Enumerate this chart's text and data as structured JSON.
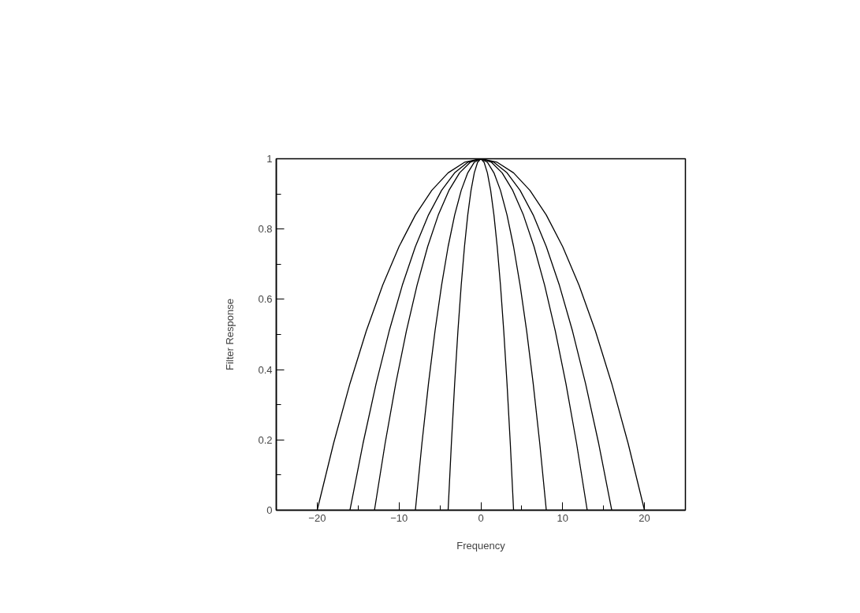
{
  "chart_data": {
    "type": "line",
    "xlabel": "Frequency",
    "ylabel": "Filter Response",
    "xlim": [
      -25,
      25
    ],
    "ylim": [
      0,
      1
    ],
    "xticks": [
      -20,
      {
        "value": -15,
        "label": null
      },
      -10,
      {
        "value": -5,
        "label": null
      },
      0,
      {
        "value": 5,
        "label": null
      },
      10,
      {
        "value": 15,
        "label": null
      },
      20
    ],
    "yticks": [
      0,
      {
        "value": 0.1,
        "label": null
      },
      0.2,
      {
        "value": 0.3,
        "label": null
      },
      0.4,
      {
        "value": 0.5,
        "label": null
      },
      0.6,
      {
        "value": 0.7,
        "label": null
      },
      0.8,
      {
        "value": 0.9,
        "label": null
      },
      1
    ],
    "grid": false,
    "marker": "none",
    "line_style": "solid",
    "series": [
      {
        "color": "#000000",
        "x": [
          -20,
          -18,
          -16,
          -14,
          -12,
          -10,
          -8,
          -6,
          -4,
          -2,
          0,
          2,
          4,
          6,
          8,
          10,
          12,
          14,
          16,
          18,
          20
        ],
        "values": [
          0,
          0.19,
          0.36,
          0.51,
          0.64,
          0.75,
          0.84,
          0.91,
          0.96,
          0.99,
          1,
          0.99,
          0.96,
          0.91,
          0.84,
          0.75,
          0.64,
          0.51,
          0.36,
          0.19,
          0
        ]
      },
      {
        "color": "#000000",
        "x": [
          -16,
          -14.4,
          -12.8,
          -11.2,
          -9.6,
          -8,
          -6.4,
          -4.8,
          -3.2,
          -1.6,
          0,
          1.6,
          3.2,
          4.8,
          6.4,
          8,
          9.6,
          11.2,
          12.8,
          14.4,
          16
        ],
        "values": [
          0,
          0.19,
          0.36,
          0.51,
          0.64,
          0.75,
          0.84,
          0.91,
          0.96,
          0.99,
          1,
          0.99,
          0.96,
          0.91,
          0.84,
          0.75,
          0.64,
          0.51,
          0.36,
          0.19,
          0
        ]
      },
      {
        "color": "#000000",
        "x": [
          -13,
          -11.7,
          -10.4,
          -9.1,
          -7.8,
          -6.5,
          -5.2,
          -3.9,
          -2.6,
          -1.3,
          0,
          1.3,
          2.6,
          3.9,
          5.2,
          6.5,
          7.8,
          9.1,
          10.4,
          11.7,
          13
        ],
        "values": [
          0,
          0.19,
          0.36,
          0.51,
          0.64,
          0.75,
          0.84,
          0.91,
          0.96,
          0.99,
          1,
          0.99,
          0.96,
          0.91,
          0.84,
          0.75,
          0.64,
          0.51,
          0.36,
          0.19,
          0
        ]
      },
      {
        "color": "#000000",
        "x": [
          -8,
          -7.2,
          -6.4,
          -5.6,
          -4.8,
          -4,
          -3.2,
          -2.4,
          -1.6,
          -0.8,
          0,
          0.8,
          1.6,
          2.4,
          3.2,
          4,
          4.8,
          5.6,
          6.4,
          7.2,
          8
        ],
        "values": [
          0,
          0.19,
          0.36,
          0.51,
          0.64,
          0.75,
          0.84,
          0.91,
          0.96,
          0.99,
          1,
          0.99,
          0.96,
          0.91,
          0.84,
          0.75,
          0.64,
          0.51,
          0.36,
          0.19,
          0
        ]
      },
      {
        "color": "#000000",
        "x": [
          -4,
          -3.6,
          -3.2,
          -2.8,
          -2.4,
          -2,
          -1.6,
          -1.2,
          -0.8,
          -0.4,
          0,
          0.4,
          0.8,
          1.2,
          1.6,
          2,
          2.4,
          2.8,
          3.2,
          3.6,
          4
        ],
        "values": [
          0,
          0.19,
          0.36,
          0.51,
          0.64,
          0.75,
          0.84,
          0.91,
          0.96,
          0.99,
          1,
          0.99,
          0.96,
          0.91,
          0.84,
          0.75,
          0.64,
          0.51,
          0.36,
          0.19,
          0
        ]
      }
    ]
  }
}
